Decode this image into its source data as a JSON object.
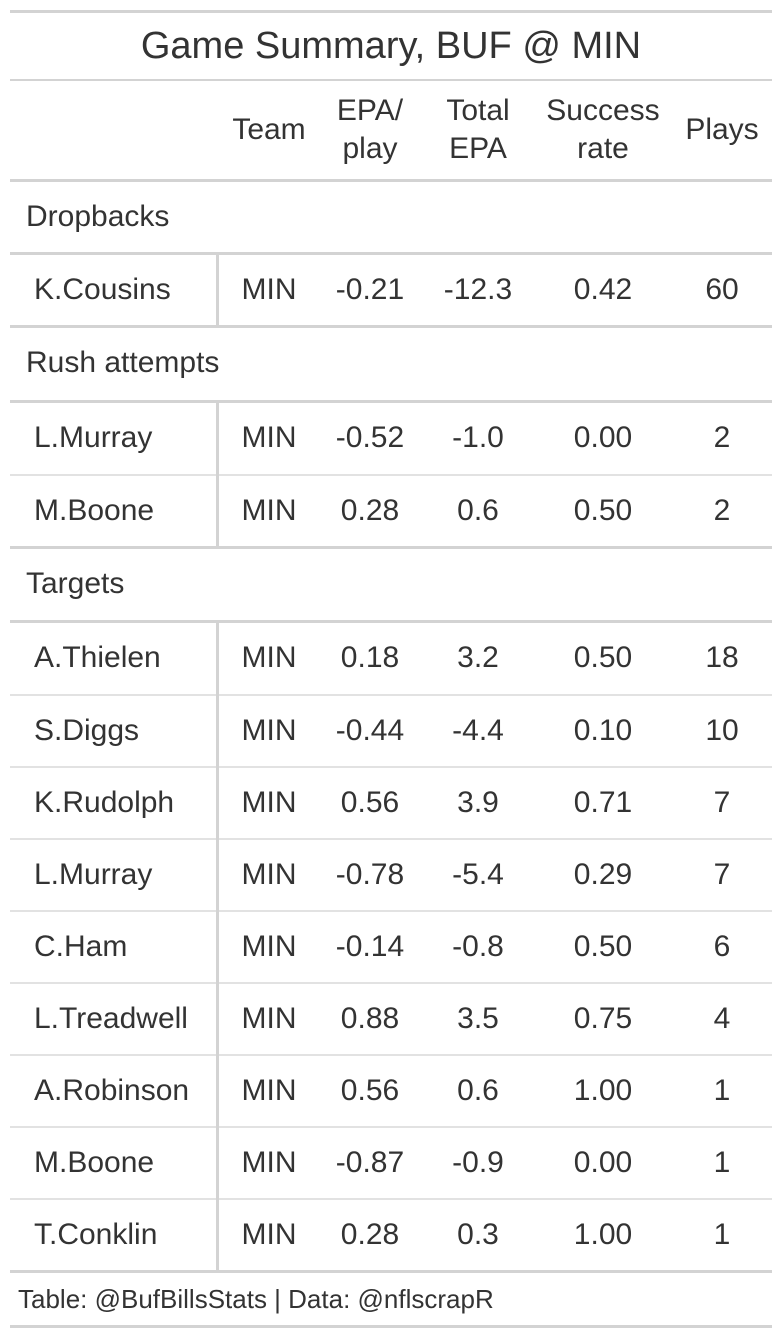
{
  "title": "Game Summary, BUF @ MIN",
  "columns": {
    "team": "Team",
    "epa_play_line1": "EPA/",
    "epa_play_line2": "play",
    "total_epa_line1": "Total",
    "total_epa_line2": "EPA",
    "success_line1": "Success",
    "success_line2": "rate",
    "plays": "Plays"
  },
  "groups": [
    {
      "label": "Dropbacks",
      "rows": [
        {
          "name": "K.Cousins",
          "team": "MIN",
          "epa_play": "-0.21",
          "total_epa": "-12.3",
          "success_rate": "0.42",
          "plays": "60"
        }
      ]
    },
    {
      "label": "Rush attempts",
      "rows": [
        {
          "name": "L.Murray",
          "team": "MIN",
          "epa_play": "-0.52",
          "total_epa": "-1.0",
          "success_rate": "0.00",
          "plays": "2"
        },
        {
          "name": "M.Boone",
          "team": "MIN",
          "epa_play": "0.28",
          "total_epa": "0.6",
          "success_rate": "0.50",
          "plays": "2"
        }
      ]
    },
    {
      "label": "Targets",
      "rows": [
        {
          "name": "A.Thielen",
          "team": "MIN",
          "epa_play": "0.18",
          "total_epa": "3.2",
          "success_rate": "0.50",
          "plays": "18"
        },
        {
          "name": "S.Diggs",
          "team": "MIN",
          "epa_play": "-0.44",
          "total_epa": "-4.4",
          "success_rate": "0.10",
          "plays": "10"
        },
        {
          "name": "K.Rudolph",
          "team": "MIN",
          "epa_play": "0.56",
          "total_epa": "3.9",
          "success_rate": "0.71",
          "plays": "7"
        },
        {
          "name": "L.Murray",
          "team": "MIN",
          "epa_play": "-0.78",
          "total_epa": "-5.4",
          "success_rate": "0.29",
          "plays": "7"
        },
        {
          "name": "C.Ham",
          "team": "MIN",
          "epa_play": "-0.14",
          "total_epa": "-0.8",
          "success_rate": "0.50",
          "plays": "6"
        },
        {
          "name": "L.Treadwell",
          "team": "MIN",
          "epa_play": "0.88",
          "total_epa": "3.5",
          "success_rate": "0.75",
          "plays": "4"
        },
        {
          "name": "A.Robinson",
          "team": "MIN",
          "epa_play": "0.56",
          "total_epa": "0.6",
          "success_rate": "1.00",
          "plays": "1"
        },
        {
          "name": "M.Boone",
          "team": "MIN",
          "epa_play": "-0.87",
          "total_epa": "-0.9",
          "success_rate": "0.00",
          "plays": "1"
        },
        {
          "name": "T.Conklin",
          "team": "MIN",
          "epa_play": "0.28",
          "total_epa": "0.3",
          "success_rate": "1.00",
          "plays": "1"
        }
      ]
    }
  ],
  "source_note": "Table: @BufBillsStats | Data: @nflscrapR"
}
